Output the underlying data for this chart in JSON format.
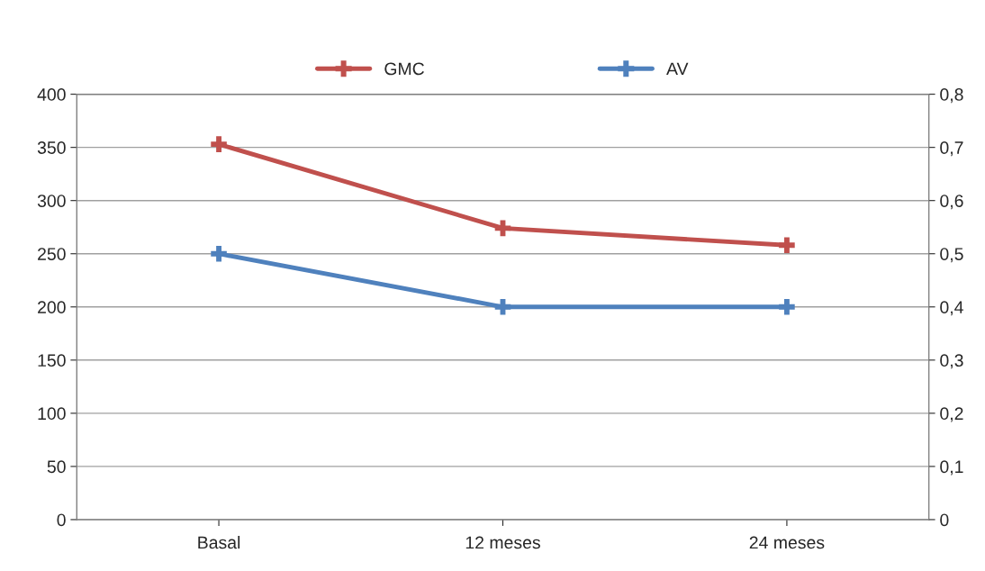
{
  "chart_data": {
    "type": "line",
    "categories": [
      "Basal",
      "12 meses",
      "24 meses"
    ],
    "series": [
      {
        "name": "GMC",
        "color": "#c0504d",
        "values": [
          353,
          274,
          258
        ]
      },
      {
        "name": "AV",
        "color": "#4f81bd",
        "values": [
          0.5,
          0.4,
          0.4
        ],
        "axis": "y2"
      }
    ],
    "ylim": [
      0,
      400
    ],
    "yticks": [
      0,
      50,
      100,
      150,
      200,
      250,
      300,
      350,
      400
    ],
    "y2lim": [
      0,
      0.8
    ],
    "y2ticks": [
      {
        "value": 0,
        "label": "0"
      },
      {
        "value": 0.1,
        "label": "0,1"
      },
      {
        "value": 0.2,
        "label": "0,2"
      },
      {
        "value": 0.3,
        "label": "0,3"
      },
      {
        "value": 0.4,
        "label": "0,4"
      },
      {
        "value": 0.5,
        "label": "0,5"
      },
      {
        "value": 0.6,
        "label": "0,6"
      },
      {
        "value": 0.7,
        "label": "0,7"
      },
      {
        "value": 0.8,
        "label": "0,8"
      }
    ],
    "grid": "y",
    "legend": "top",
    "marker": "cross",
    "line_style": "solid"
  }
}
